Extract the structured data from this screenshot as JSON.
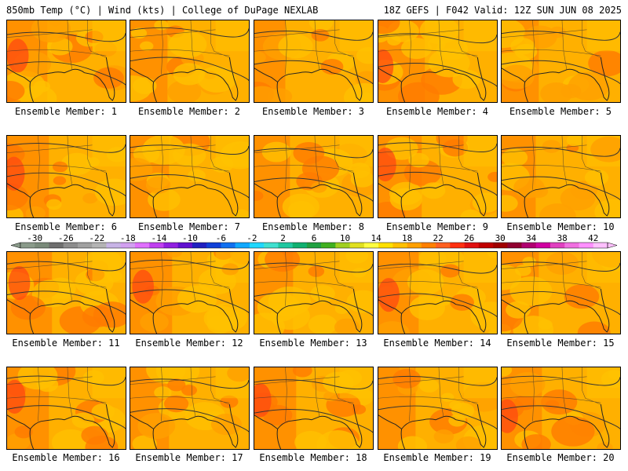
{
  "header": {
    "left": "850mb Temp (°C) | Wind (kts) | College of DuPage NEXLAB",
    "right": "18Z GEFS | F042 Valid: 12Z SUN JUN 08 2025"
  },
  "panels": [
    {
      "label": "Ensemble Member: 1",
      "hot": 0.55
    },
    {
      "label": "Ensemble Member: 2",
      "hot": 0.45
    },
    {
      "label": "Ensemble Member: 3",
      "hot": 0.25
    },
    {
      "label": "Ensemble Member: 4",
      "hot": 0.75
    },
    {
      "label": "Ensemble Member: 5",
      "hot": 0.45
    },
    {
      "label": "Ensemble Member: 6",
      "hot": 0.6
    },
    {
      "label": "Ensemble Member: 7",
      "hot": 0.5
    },
    {
      "label": "Ensemble Member: 8",
      "hot": 0.4
    },
    {
      "label": "Ensemble Member: 9",
      "hot": 0.65
    },
    {
      "label": "Ensemble Member: 10",
      "hot": 0.35
    },
    {
      "label": "Ensemble Member: 11",
      "hot": 0.7
    },
    {
      "label": "Ensemble Member: 12",
      "hot": 0.6
    },
    {
      "label": "Ensemble Member: 13",
      "hot": 0.5
    },
    {
      "label": "Ensemble Member: 14",
      "hot": 0.55
    },
    {
      "label": "Ensemble Member: 15",
      "hot": 0.45
    },
    {
      "label": "Ensemble Member: 16",
      "hot": 0.6
    },
    {
      "label": "Ensemble Member: 17",
      "hot": 0.5
    },
    {
      "label": "Ensemble Member: 18",
      "hot": 0.6
    },
    {
      "label": "Ensemble Member: 19",
      "hot": 0.45
    },
    {
      "label": "Ensemble Member: 20",
      "hot": 0.55
    }
  ],
  "colorbar": {
    "ticks": [
      "-30",
      "-26",
      "-22",
      "-18",
      "-14",
      "-10",
      "-6",
      "-2",
      "2",
      "6",
      "10",
      "14",
      "18",
      "22",
      "26",
      "30",
      "34",
      "38",
      "42"
    ],
    "colors": [
      "#8a9a8a",
      "#7a8a7a",
      "#6e6e6e",
      "#8c8c8c",
      "#a0a0a0",
      "#b4b4b4",
      "#c8b4e6",
      "#d2a0f0",
      "#e070ff",
      "#c040f0",
      "#9020e0",
      "#6010d0",
      "#2020c0",
      "#1040d8",
      "#1070f0",
      "#10a8ff",
      "#20d8ff",
      "#40e0d0",
      "#20c8a0",
      "#10b070",
      "#20a040",
      "#40b020",
      "#a0d020",
      "#e0e020",
      "#ffff40",
      "#ffe000",
      "#ffc000",
      "#ffa000",
      "#ff8000",
      "#ff6020",
      "#ff3010",
      "#e01010",
      "#c00000",
      "#a00000",
      "#900030",
      "#b00070",
      "#d000a0",
      "#e040c0",
      "#f070e0",
      "#ff90ff",
      "#ffc0ff"
    ]
  }
}
